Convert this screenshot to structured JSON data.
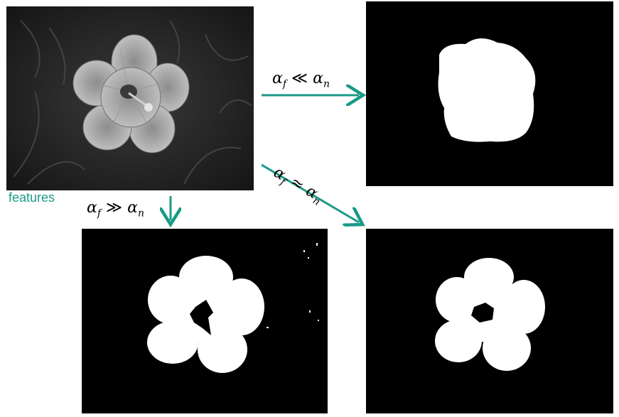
{
  "features_label": "features",
  "arrow_color": "#1a9a86",
  "labels": {
    "top": {
      "alpha": "α",
      "sub1": "f",
      "op": "≪",
      "alpha2": "α",
      "sub2": "n"
    },
    "diag": {
      "alpha": "α",
      "sub1": "f",
      "op": "≈",
      "alpha2": "α",
      "sub2": "n"
    },
    "down": {
      "alpha": "α",
      "sub1": "f",
      "op": "≫",
      "alpha2": "α",
      "sub2": "n"
    }
  }
}
